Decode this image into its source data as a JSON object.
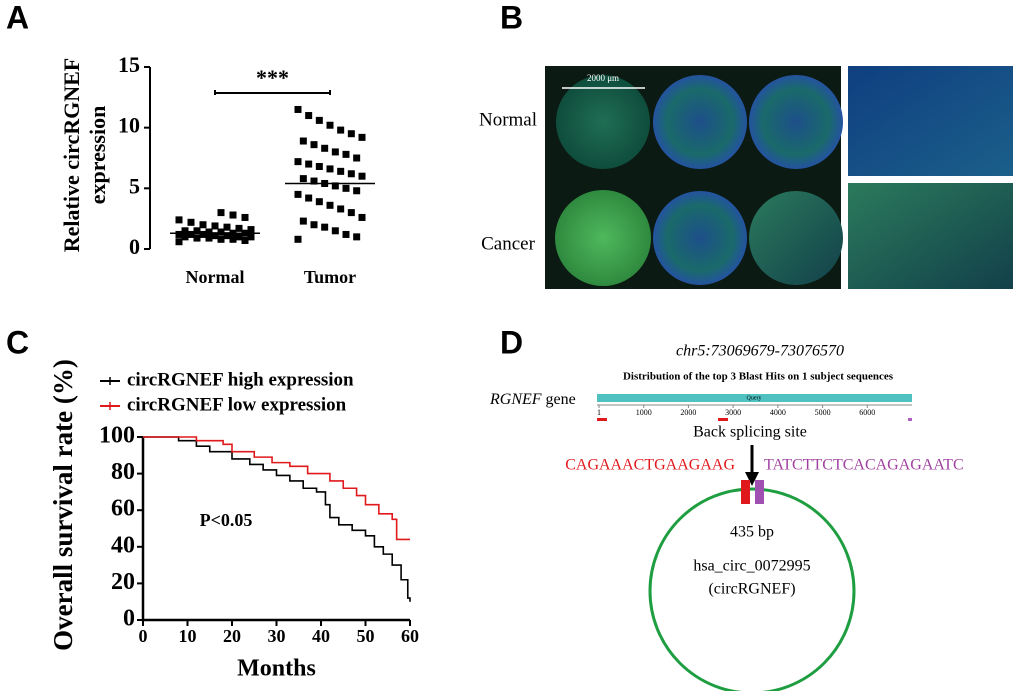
{
  "panel_letters": [
    "A",
    "B",
    "C",
    "D"
  ],
  "chart_data": [
    {
      "type": "strip",
      "y_label": [
        "Relative circRGNEF",
        "expression"
      ],
      "annotation": "***",
      "categories": [
        "Normal",
        "Tumor"
      ],
      "values": [
        [
          0.6,
          0.7,
          0.8,
          0.8,
          0.9,
          0.9,
          1.0,
          1.0,
          1.0,
          1.1,
          1.1,
          1.2,
          1.2,
          1.2,
          1.3,
          1.3,
          1.4,
          1.4,
          1.5,
          1.5,
          1.6,
          1.7,
          1.8,
          1.9,
          2.0,
          2.2,
          2.4,
          2.6,
          2.8,
          3.0
        ],
        [
          0.8,
          1.0,
          1.2,
          1.5,
          1.8,
          2.0,
          2.3,
          2.6,
          3.0,
          3.3,
          3.6,
          3.9,
          4.2,
          4.5,
          4.8,
          5.0,
          5.2,
          5.4,
          5.6,
          5.8,
          6.0,
          6.2,
          6.4,
          6.6,
          6.8,
          7.0,
          7.2,
          7.5,
          7.8,
          8.0,
          8.3,
          8.6,
          8.9,
          9.2,
          9.5,
          9.8,
          10.2,
          10.6,
          11.0,
          11.5
        ]
      ],
      "means": [
        1.3,
        5.4
      ],
      "color": "#000000",
      "ylim": [
        0,
        15
      ],
      "yticks": [
        0,
        5,
        10,
        15
      ]
    },
    {
      "type": "step",
      "x_label": "Months",
      "y_label": "Overall survival rate (%)",
      "annotation": "P<0.05",
      "series": [
        {
          "name": "circRGNEF high expression",
          "color": "#000000",
          "x": [
            0,
            5,
            8,
            12,
            15,
            20,
            24,
            27,
            30,
            33,
            36,
            39,
            41,
            42,
            44,
            47,
            50,
            52,
            54,
            56,
            58,
            59.5,
            60
          ],
          "values": [
            100,
            100,
            98,
            95,
            92,
            88,
            85,
            82,
            79,
            76,
            72,
            70,
            63,
            56,
            52,
            49,
            46,
            40,
            36,
            30,
            22,
            12,
            10
          ]
        },
        {
          "name": "circRGNEF low expression",
          "color": "#e0191c",
          "x": [
            0,
            8,
            12,
            18,
            20,
            25,
            29,
            33,
            37,
            42,
            45,
            48,
            50,
            53,
            56,
            57,
            60
          ],
          "values": [
            100,
            100,
            98,
            96,
            92,
            89,
            86,
            84,
            80,
            76,
            72,
            68,
            63,
            58,
            55,
            44,
            44
          ]
        }
      ],
      "xlim": [
        0,
        60
      ],
      "xticks": [
        0,
        10,
        20,
        30,
        40,
        50,
        60
      ],
      "ylim": [
        0,
        100
      ],
      "yticks": [
        0,
        20,
        40,
        60,
        80,
        100
      ]
    }
  ],
  "panel_b": {
    "rows": [
      "Normal",
      "Cancer"
    ],
    "scale_bar": "2000 μm"
  },
  "panel_d": {
    "locus": "chr5:73069679-73076570",
    "blast_title": "Distribution of the top 3 Blast Hits on 1 subject sequences",
    "gene_name": "RGNEF",
    "gene_word": "gene",
    "query": "Query",
    "ruler_ticks": [
      1,
      1000,
      2000,
      3000,
      4000,
      5000,
      6000
    ],
    "site": "Back splicing site",
    "seq_left": "CAGAAACTGAAGAAG",
    "seq_right": "TATCTTCTCACAGAGAATC",
    "size": "435 bp",
    "circ_id": "hsa_circ_0072995",
    "alias": "(circRGNEF)"
  }
}
